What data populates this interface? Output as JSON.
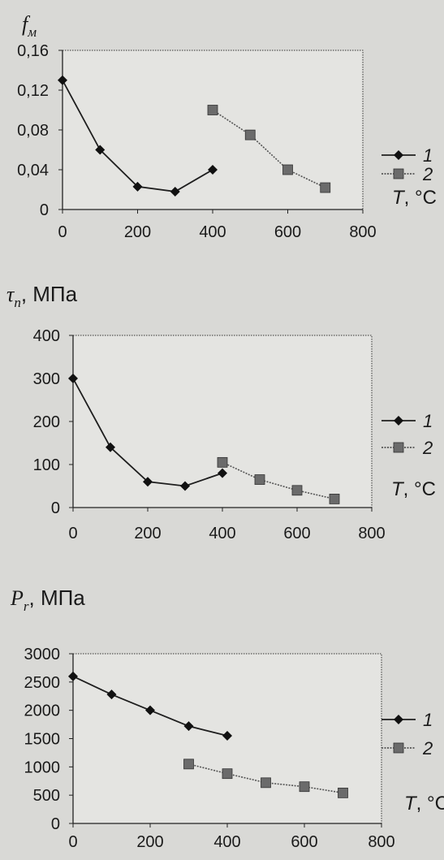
{
  "chart_data": [
    {
      "type": "line",
      "ylabel_main": "f",
      "ylabel_sub": "м",
      "ylabel_unit": "",
      "xlabel": "T, °C",
      "ylim": [
        0,
        0.16
      ],
      "yticks": [
        "0",
        "0,04",
        "0,08",
        "0,12",
        "0,16"
      ],
      "ytick_values": [
        0,
        0.04,
        0.08,
        0.12,
        0.16
      ],
      "xlim": [
        0,
        800
      ],
      "xticks": [
        "0",
        "200",
        "400",
        "600",
        "800"
      ],
      "xtick_values": [
        0,
        200,
        400,
        600,
        800
      ],
      "series": [
        {
          "name": "1",
          "marker": "diamond",
          "x": [
            0,
            100,
            200,
            300,
            400
          ],
          "y": [
            0.13,
            0.06,
            0.023,
            0.018,
            0.04
          ]
        },
        {
          "name": "2",
          "marker": "square",
          "x": [
            400,
            500,
            600,
            700
          ],
          "y": [
            0.1,
            0.075,
            0.04,
            0.022
          ]
        }
      ]
    },
    {
      "type": "line",
      "ylabel_main": "τ",
      "ylabel_sub": "n",
      "ylabel_unit": ", МПа",
      "xlabel": "T, °C",
      "ylim": [
        0,
        400
      ],
      "yticks": [
        "0",
        "100",
        "200",
        "300",
        "400"
      ],
      "ytick_values": [
        0,
        100,
        200,
        300,
        400
      ],
      "xlim": [
        0,
        800
      ],
      "xticks": [
        "0",
        "200",
        "400",
        "600",
        "800"
      ],
      "xtick_values": [
        0,
        200,
        400,
        600,
        800
      ],
      "series": [
        {
          "name": "1",
          "marker": "diamond",
          "x": [
            0,
            100,
            200,
            300,
            400
          ],
          "y": [
            300,
            140,
            60,
            50,
            80
          ]
        },
        {
          "name": "2",
          "marker": "square",
          "x": [
            400,
            500,
            600,
            700
          ],
          "y": [
            105,
            65,
            40,
            20
          ]
        }
      ]
    },
    {
      "type": "line",
      "ylabel_main": "P",
      "ylabel_sub": "r",
      "ylabel_unit": ", МПа",
      "xlabel": "T, °C",
      "ylim": [
        0,
        3000
      ],
      "yticks": [
        "0",
        "500",
        "1000",
        "1500",
        "2000",
        "2500",
        "3000"
      ],
      "ytick_values": [
        0,
        500,
        1000,
        1500,
        2000,
        2500,
        3000
      ],
      "xlim": [
        0,
        800
      ],
      "xticks": [
        "0",
        "200",
        "400",
        "600",
        "800"
      ],
      "xtick_values": [
        0,
        200,
        400,
        600,
        800
      ],
      "series": [
        {
          "name": "1",
          "marker": "diamond",
          "x": [
            0,
            100,
            200,
            300,
            400
          ],
          "y": [
            2600,
            2280,
            2000,
            1720,
            1550
          ]
        },
        {
          "name": "2",
          "marker": "square",
          "x": [
            300,
            400,
            500,
            600,
            700
          ],
          "y": [
            1050,
            880,
            720,
            650,
            540
          ]
        }
      ]
    }
  ]
}
